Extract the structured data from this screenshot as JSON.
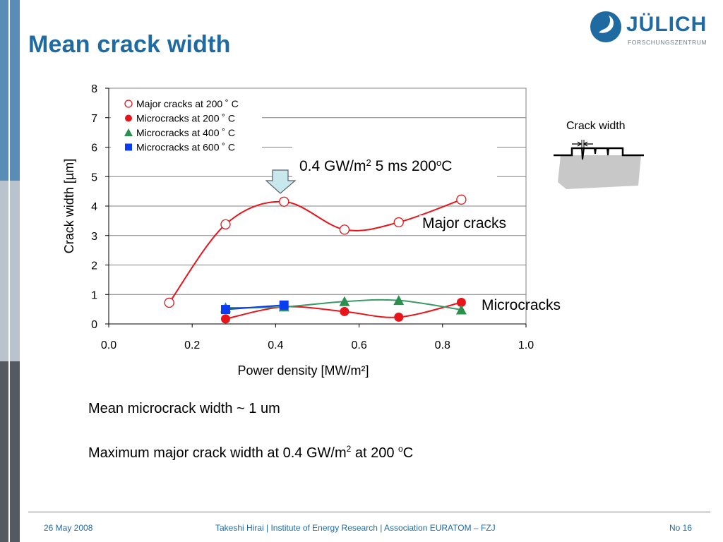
{
  "slide": {
    "title": "Mean crack width",
    "logo": {
      "name": "JÜLICH",
      "sub": "FORSCHUNGSZENTRUM"
    },
    "notes": {
      "line1": "Mean microcrack width ~ 1 um",
      "line2_a": "Maximum major crack width at 0.4 GW/m",
      "line2_sup1": "2",
      "line2_b": " at 200 ",
      "line2_sup2": "o",
      "line2_c": "C"
    },
    "footer": {
      "date": "26 May 2008",
      "author": "Takeshi Hirai | Institute of Energy Research | Association EURATOM – FZJ",
      "page": "No 16"
    }
  },
  "callout": {
    "a": "0.4 GW/m",
    "sup1": "2",
    "b": " 5 ms 200",
    "sup2": "o",
    "c": "C"
  },
  "annotations": {
    "major": "Major cracks",
    "micro": "Microcracks"
  },
  "diagram": {
    "title": "Crack width"
  },
  "chart_data": {
    "type": "scatter",
    "title": "",
    "xlabel": "Power density [MW/m²]",
    "ylabel": "Crack width [µm]",
    "xlim": [
      0.0,
      1.0
    ],
    "ylim": [
      0,
      8
    ],
    "xticks": [
      "0.0",
      "0.2",
      "0.4",
      "0.6",
      "0.8",
      "1.0"
    ],
    "yticks": [
      "0",
      "1",
      "2",
      "3",
      "4",
      "5",
      "6",
      "7",
      "8"
    ],
    "grid": "horizontal",
    "legend": "top-left",
    "series": [
      {
        "name": "Major cracks at 200 ˚ C",
        "marker": "circle-open",
        "color": "#e8141b",
        "line_color": "#e8141b",
        "x": [
          0.145,
          0.28,
          0.42,
          0.565,
          0.695,
          0.845
        ],
        "y": [
          0.72,
          3.38,
          4.15,
          3.2,
          3.45,
          4.22
        ]
      },
      {
        "name": "Microcracks at 200 ˚ C",
        "marker": "circle",
        "color": "#e8141b",
        "line_color": "#e8141b",
        "x": [
          0.28,
          0.42,
          0.565,
          0.695,
          0.845
        ],
        "y": [
          0.17,
          0.58,
          0.42,
          0.23,
          0.73
        ]
      },
      {
        "name": "Microcracks at 400 ˚ C",
        "marker": "triangle",
        "color": "#2d8f4e",
        "line_color": "#3a9a66",
        "x": [
          0.28,
          0.42,
          0.565,
          0.695,
          0.845
        ],
        "y": [
          0.55,
          0.58,
          0.76,
          0.8,
          0.48
        ]
      },
      {
        "name": "Microcracks at 600 ˚ C",
        "marker": "square",
        "color": "#0a3cf0",
        "line_color": "#0a3cf0",
        "x": [
          0.28,
          0.42
        ],
        "y": [
          0.49,
          0.64
        ]
      }
    ]
  }
}
